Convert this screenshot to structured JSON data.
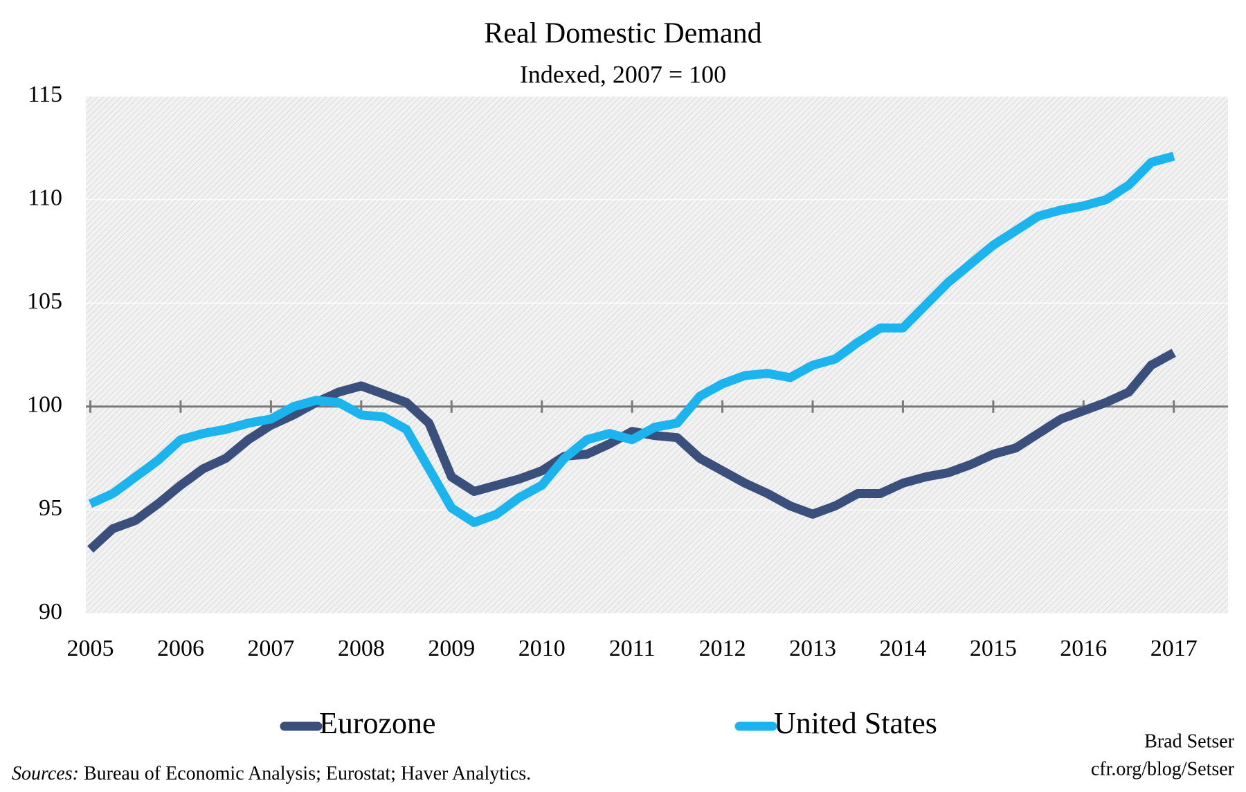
{
  "chart_data": {
    "type": "line",
    "title": "Real Domestic Demand",
    "subtitle": "Indexed, 2007 = 100",
    "x": [
      2005,
      2005.25,
      2005.5,
      2005.75,
      2006,
      2006.25,
      2006.5,
      2006.75,
      2007,
      2007.25,
      2007.5,
      2007.75,
      2008,
      2008.25,
      2008.5,
      2008.75,
      2009,
      2009.25,
      2009.5,
      2009.75,
      2010,
      2010.25,
      2010.5,
      2010.75,
      2011,
      2011.25,
      2011.5,
      2011.75,
      2012,
      2012.25,
      2012.5,
      2012.75,
      2013,
      2013.25,
      2013.5,
      2013.75,
      2014,
      2014.25,
      2014.5,
      2014.75,
      2015,
      2015.25,
      2015.5,
      2015.75,
      2016,
      2016.25,
      2016.5,
      2016.75,
      2017
    ],
    "series": [
      {
        "name": "Eurozone",
        "color": "#3b4f7c",
        "values": [
          93.1,
          94.1,
          94.5,
          95.3,
          96.2,
          97.0,
          97.5,
          98.4,
          99.1,
          99.6,
          100.2,
          100.7,
          101.0,
          100.6,
          100.2,
          99.2,
          96.6,
          95.9,
          96.2,
          96.5,
          96.9,
          97.6,
          97.7,
          98.2,
          98.8,
          98.6,
          98.5,
          97.5,
          96.9,
          96.3,
          95.8,
          95.2,
          94.8,
          95.2,
          95.8,
          95.8,
          96.3,
          96.6,
          96.8,
          97.2,
          97.7,
          98.0,
          98.7,
          99.4,
          99.8,
          100.2,
          100.7,
          102.0,
          102.6
        ]
      },
      {
        "name": "United States",
        "color": "#1cb4ee",
        "values": [
          95.3,
          95.8,
          96.6,
          97.4,
          98.4,
          98.7,
          98.9,
          99.2,
          99.4,
          100.0,
          100.3,
          100.2,
          99.6,
          99.5,
          98.9,
          97.0,
          95.1,
          94.4,
          94.8,
          95.6,
          96.2,
          97.5,
          98.4,
          98.7,
          98.4,
          99.0,
          99.2,
          100.5,
          101.1,
          101.5,
          101.6,
          101.4,
          102.0,
          102.3,
          103.1,
          103.8,
          103.8,
          104.9,
          106.0,
          106.9,
          107.8,
          108.5,
          109.2,
          109.5,
          109.7,
          110.0,
          110.7,
          111.8,
          112.1
        ]
      }
    ],
    "xlim": [
      2004.95,
      2017.6
    ],
    "xticks": [
      2005,
      2006,
      2007,
      2008,
      2009,
      2010,
      2011,
      2012,
      2013,
      2014,
      2015,
      2016,
      2017
    ],
    "ylim": [
      90,
      115
    ],
    "yticks": [
      90,
      95,
      100,
      105,
      110,
      115
    ],
    "x_axis_crosses": 100,
    "grid": true,
    "legend": "bottom",
    "author": [
      "Brad Setser",
      "cfr.org/blog/Setser"
    ],
    "source_label": "Sources:",
    "source_text": "Bureau of Economic Analysis; Eurostat; Haver Analytics."
  }
}
